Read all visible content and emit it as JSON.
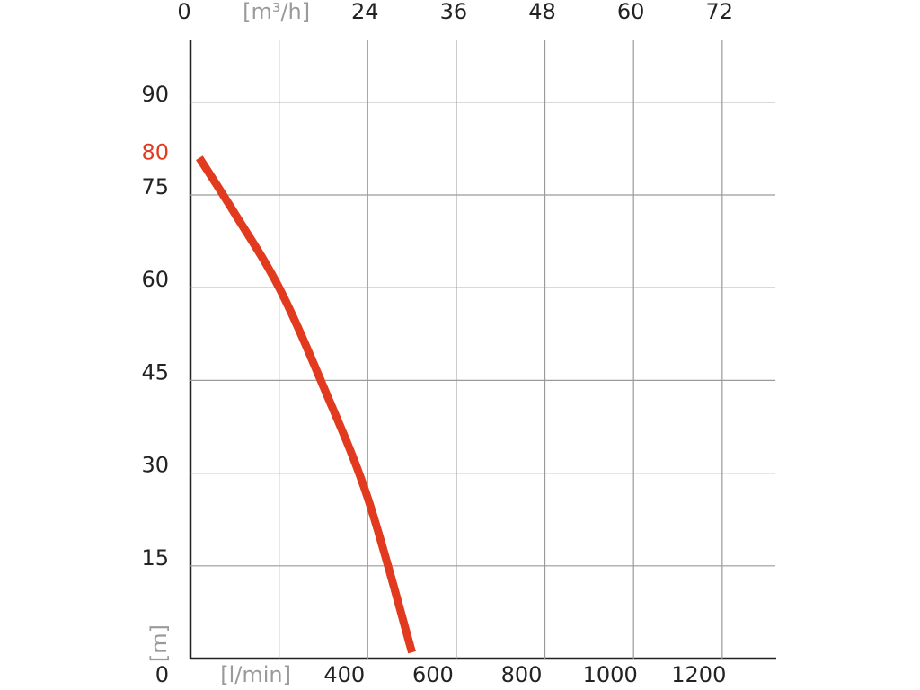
{
  "chart_data": {
    "type": "line",
    "ylabel": "[m]",
    "x": [
      20,
      100,
      200,
      300,
      400,
      500
    ],
    "series": [
      {
        "color": "#e23a1f",
        "values": [
          81,
          72,
          60,
          44,
          26,
          1
        ]
      }
    ],
    "xlim": [
      0,
      1320
    ],
    "xticks": [
      {
        "value": 200,
        "label": "[l/min]"
      },
      400,
      600,
      800,
      1000,
      1200
    ],
    "x2lim": [
      0,
      79.2
    ],
    "x2ticks": [
      0,
      {
        "value": 12,
        "label": "[m³/h]"
      },
      24,
      36,
      48,
      60,
      72
    ],
    "ylim": [
      0,
      100
    ],
    "yticks": [
      0,
      15,
      30,
      45,
      60,
      75,
      90
    ],
    "unit_label_color": "#9a9a9a",
    "annotations": [
      {
        "text": "80",
        "y": 80,
        "color": "#e23a1f"
      }
    ],
    "grid": true
  }
}
